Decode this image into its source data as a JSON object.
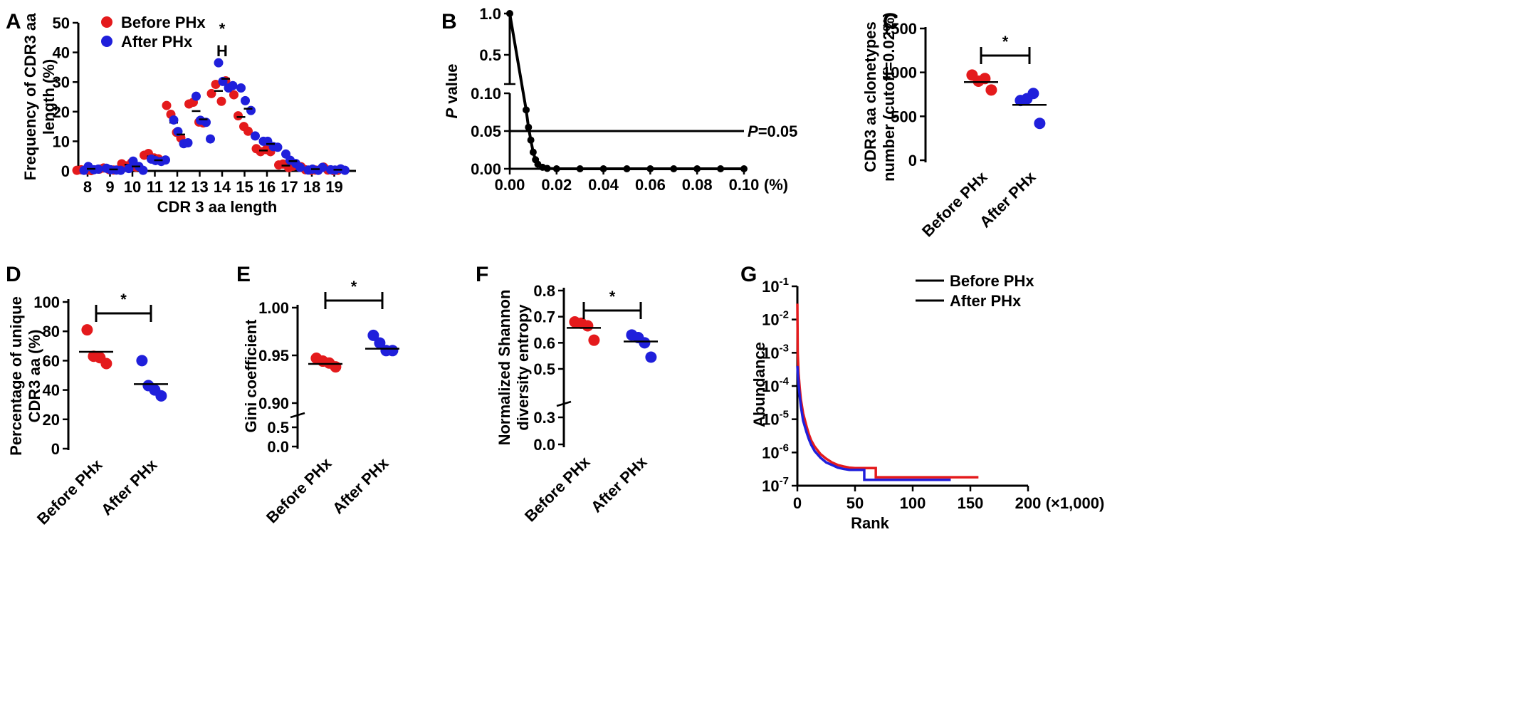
{
  "colors": {
    "before": "#e41a1c",
    "after": "#1f1fdb",
    "axis": "#000000"
  },
  "chart_data": [
    {
      "panel": "A",
      "type": "scatter",
      "xlabel": "CDR 3 aa length",
      "ylabel_lines": [
        "Frequency of CDR3 aa",
        "length (%)"
      ],
      "ylim": [
        0,
        50
      ],
      "yticks": [
        "0",
        "10",
        "20",
        "30",
        "40",
        "50"
      ],
      "categories": [
        "8",
        "9",
        "10",
        "11",
        "12",
        "13",
        "14",
        "15",
        "16",
        "17",
        "18",
        "19"
      ],
      "legend": [
        "Before PHx",
        "After PHx"
      ],
      "annotation": {
        "category": "14",
        "texts": [
          "*",
          "H"
        ]
      },
      "series": [
        {
          "name": "Before PHx",
          "color": "before",
          "points": [
            [
              0.2,
              0.4,
              0.3,
              0.1
            ],
            [
              0.6,
              1,
              0.4,
              0.3
            ],
            [
              2.4,
              1.7,
              2.8,
              1.3
            ],
            [
              5.3,
              5.9,
              4.4,
              4.1
            ],
            [
              22.1,
              19.1,
              13,
              11.1
            ],
            [
              22.6,
              23.2,
              16.5,
              16.2
            ],
            [
              26.1,
              29.2,
              23.5,
              30.4
            ],
            [
              25.7,
              18.6,
              15,
              13.4
            ],
            [
              7.5,
              6.5,
              7.2,
              6.5
            ],
            [
              2,
              2.3,
              1.1,
              1.6
            ],
            [
              1.4,
              0.4,
              0.2,
              0.3
            ],
            [
              1.3,
              0.3,
              0.1,
              0.2
            ]
          ],
          "means": [
            0.3,
            0.6,
            2.1,
            4.9,
            16.3,
            20.2,
            27,
            18.2,
            6.9,
            1.8,
            0.6,
            0.5
          ]
        },
        {
          "name": "After PHx",
          "color": "after",
          "points": [
            [
              0.2,
              1.5,
              0.4,
              0.6
            ],
            [
              0.9,
              0.4,
              0.3,
              0.2
            ],
            [
              0.8,
              3.3,
              1.5,
              0.2
            ],
            [
              4,
              3.5,
              3.2,
              3.7
            ],
            [
              17.2,
              13.3,
              9.2,
              9.5
            ],
            [
              25.2,
              17.1,
              16.4,
              10.8
            ],
            [
              36.5,
              30.2,
              28,
              28.8
            ],
            [
              28,
              23.7,
              20.4,
              11.8
            ],
            [
              10,
              10,
              8.2,
              8
            ],
            [
              5.7,
              3.6,
              2.5,
              1.2
            ],
            [
              0.3,
              0.6,
              0.2,
              1.2
            ],
            [
              0.4,
              0.3,
              0.7,
              0.2
            ]
          ],
          "means": [
            0.7,
            0.5,
            1.5,
            3.6,
            12.3,
            17.4,
            31.1,
            21,
            9.1,
            3.3,
            0.6,
            0.4
          ]
        }
      ]
    },
    {
      "panel": "B",
      "type": "line",
      "ylabel": [
        "P",
        " value"
      ],
      "xunit": "(%)",
      "xticks": [
        "0.00",
        "0.02",
        "0.04",
        "0.06",
        "0.08",
        "0.10"
      ],
      "xlim": [
        0,
        0.1
      ],
      "yticks_low": [
        "0.00",
        "0.05",
        "0.10"
      ],
      "yticks_high": [
        "0.5",
        "1.0"
      ],
      "ylim_low": [
        0,
        0.1
      ],
      "ylim_high": [
        0.25,
        1.0
      ],
      "x": [
        0.0,
        0.007,
        0.008,
        0.009,
        0.01,
        0.011,
        0.012,
        0.014,
        0.016,
        0.02,
        0.03,
        0.04,
        0.05,
        0.06,
        0.07,
        0.08,
        0.09,
        0.1
      ],
      "y": [
        1.0,
        0.078,
        0.055,
        0.038,
        0.022,
        0.012,
        0.006,
        0.002,
        0.0005,
        0,
        0,
        0,
        0,
        0,
        0,
        0,
        0,
        0
      ],
      "threshold": {
        "y": 0.05,
        "label_italic": "P",
        "label_rest": "=0.05"
      }
    },
    {
      "panel": "C",
      "type": "scatter",
      "ylabel_lines": [
        "CDR3 aa clonetypes",
        "number (cutoff=0.02%)"
      ],
      "ylim": [
        0,
        1500
      ],
      "yticks": [
        "0",
        "500",
        "1000",
        "1500"
      ],
      "categories": [
        "Before PHx",
        "After PHx"
      ],
      "values": [
        [
          970,
          900,
          930,
          800
        ],
        [
          680,
          700,
          760,
          420
        ]
      ],
      "means": [
        890,
        630
      ],
      "significance": "*"
    },
    {
      "panel": "D",
      "type": "scatter",
      "ylabel_lines": [
        "Percentage of unique",
        "CDR3 aa (%)"
      ],
      "ylim": [
        0,
        100
      ],
      "yticks": [
        "0",
        "20",
        "40",
        "60",
        "80",
        "100"
      ],
      "categories": [
        "Before PHx",
        "After PHx"
      ],
      "values": [
        [
          81,
          63,
          62,
          58
        ],
        [
          60,
          43,
          40,
          36
        ]
      ],
      "means": [
        66,
        44
      ],
      "significance": "*"
    },
    {
      "panel": "E",
      "type": "scatter",
      "ylabel": "Gini coefficient",
      "ylim_high": [
        0.9,
        1.0
      ],
      "ylim_low": [
        0,
        0.7
      ],
      "yticks_high": [
        "0.90",
        "0.95",
        "1.00"
      ],
      "yticks_low": [
        "0.0",
        "0.5"
      ],
      "categories": [
        "Before PHx",
        "After PHx"
      ],
      "values": [
        [
          0.947,
          0.944,
          0.942,
          0.938
        ],
        [
          0.971,
          0.963,
          0.955,
          0.955
        ]
      ],
      "means": [
        0.941,
        0.957
      ],
      "significance": "*"
    },
    {
      "panel": "F",
      "type": "scatter",
      "ylabel_lines": [
        "Normalized Shannon",
        "diversity entropy"
      ],
      "ylim_high": [
        0.5,
        0.8
      ],
      "ylim_low": [
        0,
        0.4
      ],
      "yticks_high": [
        "0.5",
        "0.6",
        "0.7",
        "0.8"
      ],
      "yticks_low": [
        "0.0",
        "0.3"
      ],
      "categories": [
        "Before PHx",
        "After PHx"
      ],
      "values": [
        [
          0.68,
          0.675,
          0.665,
          0.61
        ],
        [
          0.63,
          0.62,
          0.6,
          0.545
        ]
      ],
      "means": [
        0.657,
        0.605
      ],
      "significance": "*"
    },
    {
      "panel": "G",
      "type": "line",
      "xlabel": "Rank",
      "xunit": "(×1,000)",
      "ylabel": "Abundance",
      "yscale": "log",
      "xlim": [
        0,
        200
      ],
      "xticks": [
        "0",
        "50",
        "100",
        "150",
        "200"
      ],
      "yticks": [
        {
          "base": "10",
          "exp": "-1"
        },
        {
          "base": "10",
          "exp": "-2"
        },
        {
          "base": "10",
          "exp": "-3"
        },
        {
          "base": "10",
          "exp": "-4"
        },
        {
          "base": "10",
          "exp": "-5"
        },
        {
          "base": "10",
          "exp": "-6"
        },
        {
          "base": "10",
          "exp": "-7"
        }
      ],
      "legend": [
        "Before PHx",
        "After PHx"
      ],
      "series": [
        {
          "name": "Before PHx",
          "color": "before",
          "x": [
            0,
            0.3,
            1,
            2,
            3,
            5,
            8,
            10,
            12,
            15,
            20,
            25,
            30,
            35,
            40,
            45,
            50,
            55,
            60,
            65,
            68,
            68,
            80,
            100,
            130,
            157
          ],
          "y": [
            0.03,
            0.001,
            0.00025,
            9e-05,
            4e-05,
            1.5e-05,
            6e-06,
            3.5e-06,
            2.3e-06,
            1.5e-06,
            9e-07,
            6.5e-07,
            5e-07,
            4.2e-07,
            3.8e-07,
            3.5e-07,
            3.4e-07,
            3.4e-07,
            3.4e-07,
            3.4e-07,
            3.4e-07,
            1.8e-07,
            1.8e-07,
            1.8e-07,
            1.8e-07,
            1.8e-07
          ]
        },
        {
          "name": "After PHx",
          "color": "after",
          "x": [
            0,
            0.3,
            1,
            2,
            3,
            5,
            8,
            10,
            12,
            15,
            20,
            25,
            30,
            35,
            40,
            45,
            50,
            55,
            58,
            58,
            80,
            100,
            133
          ],
          "y": [
            0.0004,
            0.00025,
            0.00012,
            5e-05,
            2.5e-05,
            9e-06,
            4e-06,
            2.5e-06,
            1.7e-06,
            1.1e-06,
            7e-07,
            5e-07,
            4.2e-07,
            3.5e-07,
            3.2e-07,
            3e-07,
            3e-07,
            3e-07,
            3e-07,
            1.5e-07,
            1.5e-07,
            1.5e-07,
            1.5e-07
          ]
        }
      ]
    }
  ]
}
